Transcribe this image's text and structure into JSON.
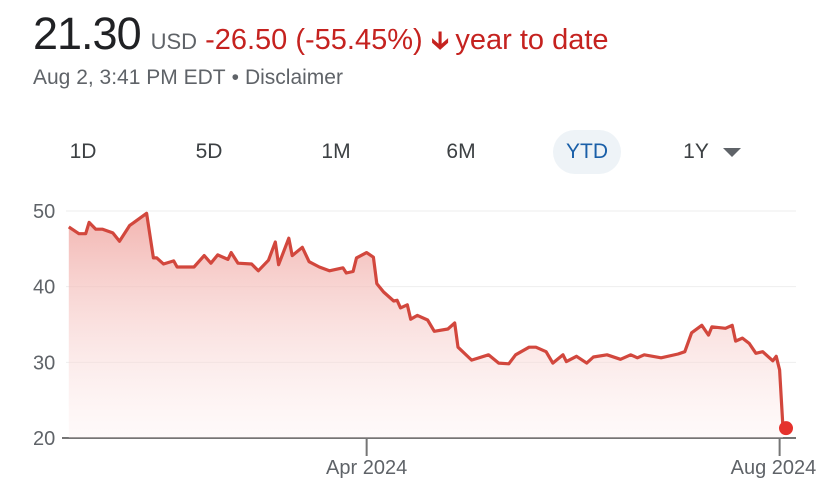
{
  "header": {
    "price": "21.30",
    "currency": "USD",
    "change": "-26.50 (-55.45%)",
    "direction_icon": "arrow-down-icon",
    "period_label": "year to date",
    "timestamp": "Aug 2, 3:41 PM EDT",
    "separator": "•",
    "disclaimer": "Disclaimer"
  },
  "colors": {
    "negative": "#c5221f",
    "active_tab": "#1a5fa8",
    "line": "#d2473d",
    "end_dot": "#e5322d"
  },
  "tabs": [
    {
      "label": "1D"
    },
    {
      "label": "5D"
    },
    {
      "label": "1M"
    },
    {
      "label": "6M"
    },
    {
      "label": "YTD",
      "active": true
    },
    {
      "label": "1Y",
      "has_dropdown": true
    }
  ],
  "chart_data": {
    "type": "area",
    "title": "",
    "xlabel": "",
    "ylabel": "",
    "ylim": [
      20,
      50
    ],
    "xlim": [
      "2024-01-02",
      "2024-08-02"
    ],
    "y_ticks": [
      "50",
      "40",
      "30",
      "20"
    ],
    "x_ticks": [
      {
        "date": "2024-04-01",
        "label": "Apr 2024"
      },
      {
        "date": "2024-08-01",
        "label": "Aug 2024"
      }
    ],
    "grid": "horizontal",
    "series": [
      {
        "dates": [
          "2024-01-04",
          "2024-01-07",
          "2024-01-09",
          "2024-01-10",
          "2024-01-12",
          "2024-01-14",
          "2024-01-17",
          "2024-01-19",
          "2024-01-22",
          "2024-01-23",
          "2024-01-27",
          "2024-01-29",
          "2024-01-30",
          "2024-02-01",
          "2024-02-04",
          "2024-02-05",
          "2024-02-10",
          "2024-02-13",
          "2024-02-15",
          "2024-02-17",
          "2024-02-20",
          "2024-02-21",
          "2024-02-23",
          "2024-02-27",
          "2024-02-29",
          "2024-03-03",
          "2024-03-05",
          "2024-03-06",
          "2024-03-09",
          "2024-03-10",
          "2024-03-13",
          "2024-03-15",
          "2024-03-18",
          "2024-03-21",
          "2024-03-25",
          "2024-03-26",
          "2024-03-28",
          "2024-03-29",
          "2024-04-01",
          "2024-04-03",
          "2024-04-04",
          "2024-04-06",
          "2024-04-09",
          "2024-04-10",
          "2024-04-11",
          "2024-04-13",
          "2024-04-14",
          "2024-04-16",
          "2024-04-19",
          "2024-04-21",
          "2024-04-25",
          "2024-04-27",
          "2024-04-28",
          "2024-05-02",
          "2024-05-07",
          "2024-05-10",
          "2024-05-13",
          "2024-05-15",
          "2024-05-19",
          "2024-05-21",
          "2024-05-24",
          "2024-05-26",
          "2024-05-29",
          "2024-05-30",
          "2024-06-02",
          "2024-06-05",
          "2024-06-07",
          "2024-06-11",
          "2024-06-15",
          "2024-06-18",
          "2024-06-20",
          "2024-06-22",
          "2024-06-27",
          "2024-07-02",
          "2024-07-04",
          "2024-07-06",
          "2024-07-09",
          "2024-07-11",
          "2024-07-12",
          "2024-07-16",
          "2024-07-18",
          "2024-07-19",
          "2024-07-21",
          "2024-07-23",
          "2024-07-25",
          "2024-07-27",
          "2024-07-30",
          "2024-07-31",
          "2024-08-01",
          "2024-08-02"
        ],
        "values": [
          47.9,
          47.0,
          47.0,
          48.5,
          47.6,
          47.6,
          47.1,
          46.0,
          48.1,
          48.4,
          49.7,
          43.8,
          43.8,
          43.0,
          43.4,
          42.6,
          42.6,
          44.1,
          43.1,
          44.2,
          43.6,
          44.5,
          43.1,
          43.0,
          42.1,
          43.5,
          45.9,
          42.9,
          46.4,
          44.1,
          45.2,
          43.3,
          42.6,
          42.1,
          42.5,
          41.8,
          42.0,
          43.8,
          44.5,
          43.9,
          40.4,
          39.3,
          38.1,
          38.2,
          37.2,
          37.6,
          35.7,
          36.2,
          35.6,
          34.1,
          34.4,
          35.2,
          32.0,
          30.3,
          31.0,
          29.9,
          29.8,
          31.0,
          32.0,
          32.0,
          31.4,
          29.9,
          31.0,
          30.1,
          30.8,
          29.9,
          30.7,
          31.0,
          30.4,
          31.0,
          30.6,
          31.0,
          30.6,
          31.1,
          31.4,
          33.9,
          34.9,
          33.6,
          34.7,
          34.5,
          34.9,
          32.8,
          33.2,
          32.5,
          31.2,
          31.4,
          30.2,
          30.8,
          29.0,
          21.3
        ]
      }
    ]
  }
}
